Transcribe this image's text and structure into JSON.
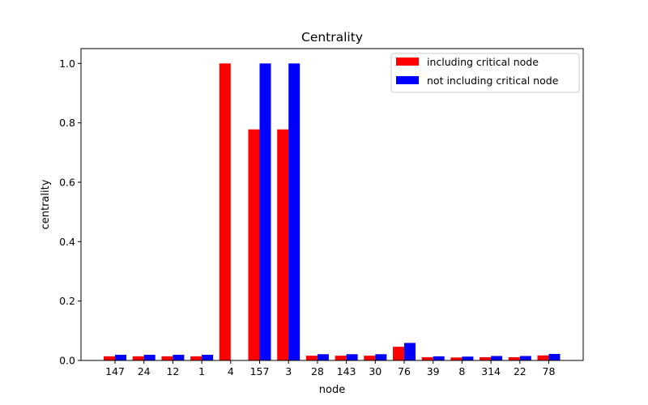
{
  "chart_data": {
    "type": "bar",
    "title": "Centrality",
    "xlabel": "node",
    "ylabel": "centrality",
    "ylim": [
      0,
      1.05
    ],
    "yticks": [
      0.0,
      0.2,
      0.4,
      0.6,
      0.8,
      1.0
    ],
    "ytick_labels": [
      "0.0",
      "0.2",
      "0.4",
      "0.6",
      "0.8",
      "1.0"
    ],
    "categories": [
      "147",
      "24",
      "12",
      "1",
      "4",
      "157",
      "3",
      "28",
      "143",
      "30",
      "76",
      "39",
      "8",
      "314",
      "22",
      "78"
    ],
    "series": [
      {
        "name": "including critical node",
        "color": "#ff0000",
        "values": [
          0.014,
          0.014,
          0.014,
          0.014,
          1.0,
          0.778,
          0.778,
          0.016,
          0.016,
          0.016,
          0.046,
          0.011,
          0.01,
          0.011,
          0.011,
          0.017
        ]
      },
      {
        "name": "not including critical node",
        "color": "#0000ff",
        "values": [
          0.019,
          0.019,
          0.019,
          0.019,
          0.0,
          1.0,
          1.0,
          0.021,
          0.021,
          0.021,
          0.059,
          0.014,
          0.013,
          0.015,
          0.015,
          0.022
        ]
      }
    ],
    "grid": false,
    "legend_position": "top-right"
  }
}
